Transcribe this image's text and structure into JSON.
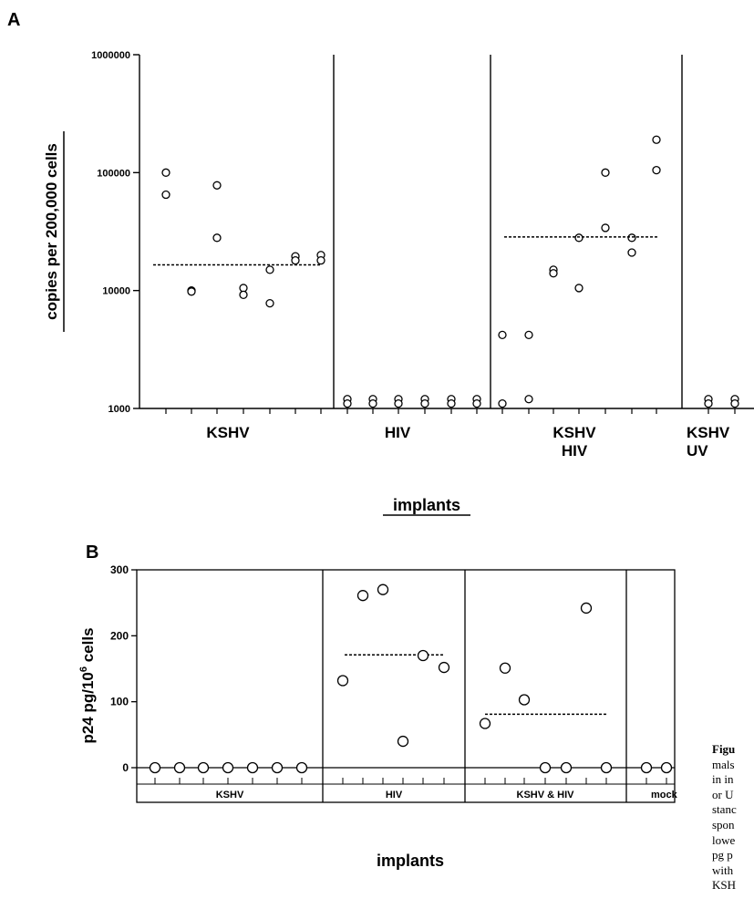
{
  "chart_data": [
    {
      "panel_label": "A",
      "type": "scatter",
      "yscale": "log",
      "ylim": [
        1000,
        1000000
      ],
      "yticks": [
        "1000",
        "10000",
        "100000",
        "1000000"
      ],
      "ylabel": "copies per 200,000 cells",
      "xlabel": "implants",
      "groups": [
        {
          "label_lines": [
            "KSHV"
          ],
          "values": [
            [
              100000,
              65000
            ],
            [
              10000,
              9800
            ],
            [
              78000,
              28000
            ],
            [
              10500,
              9200
            ],
            [
              15000,
              7800
            ],
            [
              19500,
              18000
            ],
            [
              20000,
              18000
            ]
          ],
          "mean": 16500
        },
        {
          "label_lines": [
            "HIV"
          ],
          "values": [
            [
              1200,
              1100
            ],
            [
              1200,
              1100
            ],
            [
              1200,
              1100
            ],
            [
              1200,
              1100
            ],
            [
              1200,
              1100
            ],
            [
              1200,
              1100
            ]
          ]
        },
        {
          "label_lines": [
            "KSHV",
            "HIV"
          ],
          "values": [
            [
              4200,
              1100
            ],
            [
              4200,
              1200
            ],
            [
              15000,
              14000
            ],
            [
              28000,
              10500
            ],
            [
              100000,
              34000
            ],
            [
              28000,
              21000
            ],
            [
              190000,
              105000
            ]
          ],
          "mean": 28500
        },
        {
          "label_lines": [
            "KSHV",
            "UV"
          ],
          "values": [
            [
              1200,
              1100
            ],
            [
              1200,
              1100
            ]
          ]
        }
      ]
    },
    {
      "panel_label": "B",
      "type": "scatter",
      "ylim": [
        0,
        300
      ],
      "yticks": [
        "0",
        "100",
        "200",
        "300"
      ],
      "ylabel": "p24 pg/10",
      "ylabel_superscript": "6",
      "ylabel_suffix": " cells",
      "xlabel": "implants",
      "groups": [
        {
          "label": "KSHV",
          "values": [
            0,
            0,
            0,
            0,
            0,
            0,
            0
          ]
        },
        {
          "label": "HIV",
          "values": [
            132,
            261,
            270,
            40,
            170,
            152
          ],
          "mean": 171
        },
        {
          "label": "KSHV & HIV",
          "values": [
            67,
            151,
            103,
            0,
            0,
            242,
            0
          ],
          "mean": 81
        },
        {
          "label": "mock",
          "values": [
            0,
            0
          ]
        }
      ]
    }
  ],
  "caption_fragments": [
    "Figu",
    "mals",
    "in in",
    "or U",
    "stanc",
    "spon",
    "lowe",
    "pg p",
    "with",
    "KSH"
  ]
}
